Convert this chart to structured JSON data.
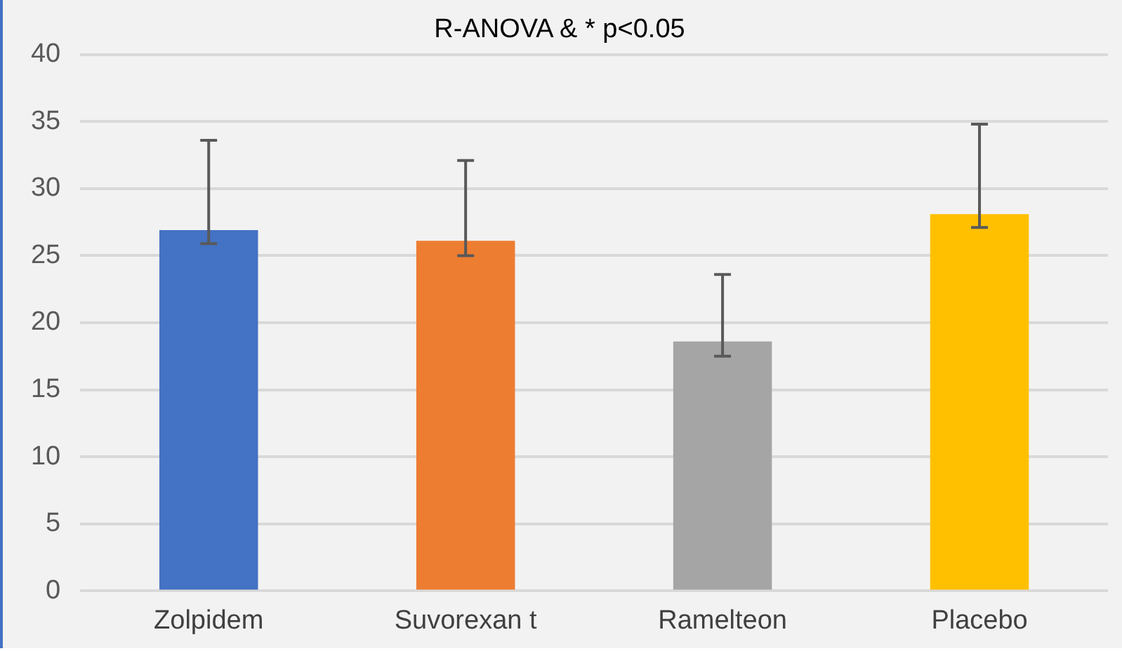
{
  "chart_data": {
    "type": "bar",
    "title": "R-ANOVA & * p<0.05",
    "categories": [
      "Zolpidem",
      "Suvorexan t",
      "Ramelteon",
      "Placebo"
    ],
    "values": [
      26.9,
      26.1,
      18.6,
      28.1
    ],
    "colors": [
      "#4472c4",
      "#ed7d31",
      "#a5a5a5",
      "#ffc000"
    ],
    "errors": [
      [
        25.9,
        33.6
      ],
      [
        25.0,
        32.1
      ],
      [
        17.5,
        23.6
      ],
      [
        27.1,
        34.8
      ]
    ],
    "ylim": [
      0,
      40
    ],
    "yticks": [
      0,
      5,
      10,
      15,
      20,
      25,
      30,
      35,
      40
    ],
    "grid": "y",
    "legend": false
  }
}
